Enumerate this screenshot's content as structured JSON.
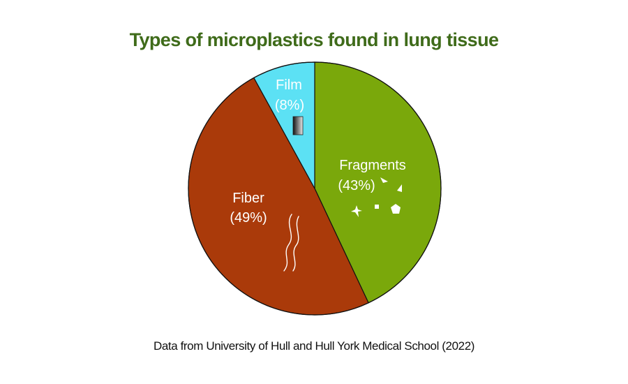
{
  "chart_data": {
    "type": "pie",
    "title": "Types of microplastics found in lung tissue",
    "source": "Data from University of Hull and Hull York Medical School (2022)",
    "slices": [
      {
        "name": "Fragments",
        "percent_label": "(43%)",
        "value": 43,
        "color": "#7aa80b"
      },
      {
        "name": "Fiber",
        "percent_label": "(49%)",
        "value": 49,
        "color": "#aa3a0a"
      },
      {
        "name": "Film",
        "percent_label": "(8%)",
        "value": 8,
        "color": "#5ce1f4"
      }
    ],
    "start_angle": "12 o'clock",
    "direction": "clockwise",
    "slice_icons": {
      "Fragments": "fragment-shapes-icon",
      "Fiber": "wavy-fibers-icon",
      "Film": "film-strip-icon"
    }
  },
  "colors": {
    "title": "#3f6b1a",
    "outline": "#111111"
  }
}
